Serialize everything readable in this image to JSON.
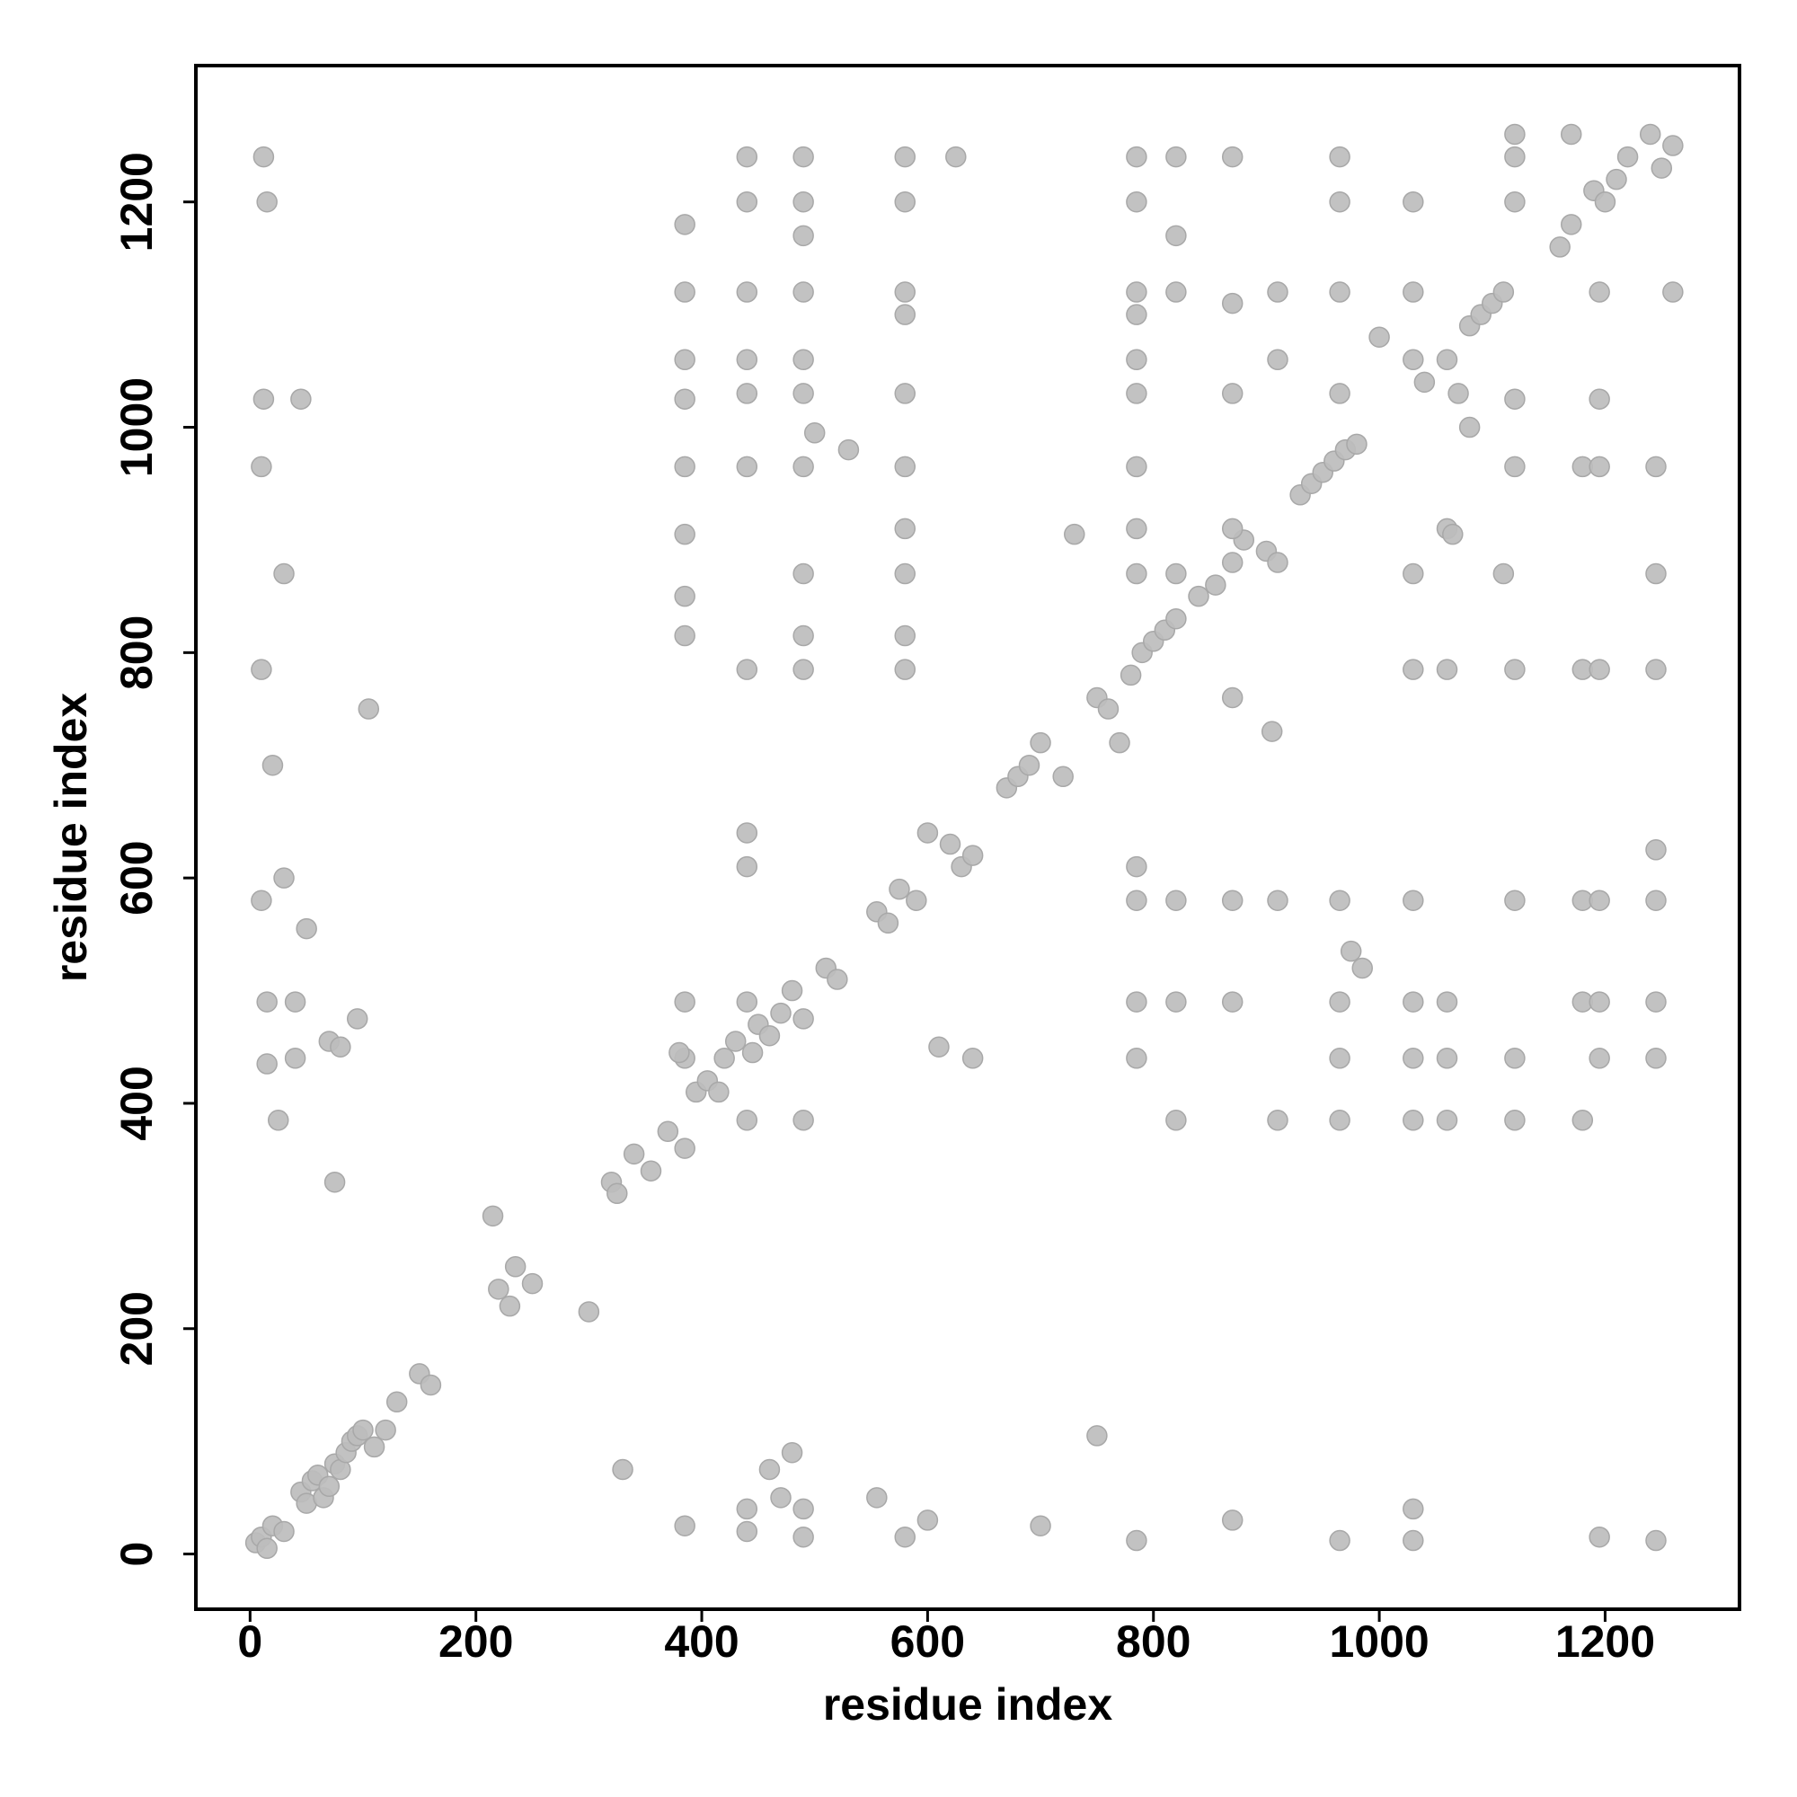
{
  "chart_data": {
    "type": "scatter",
    "x_label": "residue index",
    "y_label": "residue index",
    "color": "#bdbdbd",
    "stroke": "#a8a8a8",
    "xlim": [
      -48,
      1319
    ],
    "ylim": [
      -49,
      1321
    ],
    "xticks": [
      0,
      200,
      400,
      600,
      800,
      1000,
      1200
    ],
    "yticks": [
      0,
      200,
      400,
      600,
      800,
      1000,
      1200
    ],
    "x": [
      5,
      10,
      20,
      30,
      15,
      45,
      50,
      55,
      60,
      65,
      70,
      75,
      80,
      85,
      90,
      95,
      100,
      110,
      120,
      130,
      150,
      160,
      215,
      220,
      235,
      230,
      250,
      300,
      320,
      325,
      340,
      355,
      370,
      385,
      395,
      405,
      415,
      420,
      430,
      440,
      450,
      460,
      470,
      480,
      490,
      445,
      510,
      520,
      555,
      565,
      575,
      590,
      600,
      620,
      630,
      640,
      670,
      680,
      690,
      700,
      720,
      750,
      760,
      770,
      780,
      790,
      800,
      810,
      820,
      840,
      855,
      870,
      880,
      900,
      910,
      930,
      940,
      950,
      960,
      970,
      980,
      1000,
      1040,
      1060,
      1080,
      1090,
      1100,
      1110,
      1160,
      1170,
      1190,
      1200,
      1210,
      1220,
      1240,
      1250,
      1260,
      500,
      530,
      1080,
      1070,
      730,
      12,
      15,
      12,
      10,
      30,
      20,
      30,
      10,
      15,
      40,
      15,
      40,
      25,
      45,
      105,
      95,
      75,
      50,
      70,
      80,
      10,
      385,
      440,
      440,
      490,
      490,
      580,
      600,
      700,
      785,
      870,
      965,
      1030,
      1195,
      1245,
      460,
      480,
      330,
      555,
      750,
      1030,
      470,
      385,
      385,
      385,
      385,
      385,
      385,
      385,
      385,
      385,
      385,
      440,
      440,
      440,
      440,
      440,
      440,
      440,
      440,
      440,
      490,
      490,
      490,
      490,
      490,
      490,
      490,
      490,
      490,
      490,
      580,
      580,
      580,
      580,
      580,
      580,
      580,
      580,
      580,
      580,
      625,
      785,
      785,
      785,
      785,
      785,
      785,
      785,
      785,
      785,
      820,
      820,
      820,
      820,
      870,
      870,
      870,
      870,
      910,
      910,
      965,
      965,
      965,
      965,
      1030,
      1030,
      1030,
      1120,
      1120,
      1120,
      1170,
      785,
      785,
      785,
      785,
      820,
      820,
      820,
      870,
      870,
      910,
      910,
      965,
      965,
      965,
      965,
      1030,
      1030,
      1030,
      1030,
      1060,
      1060,
      1060,
      1120,
      1120,
      1120,
      1180,
      1180,
      1180,
      1195,
      1195,
      1195,
      1245,
      1245,
      1245,
      1245,
      1030,
      1060,
      1120,
      1180,
      1195,
      1245,
      1030,
      1110,
      1245,
      1120,
      1180,
      1195,
      1245,
      1120,
      1195,
      1195,
      1260,
      1060,
      380,
      490,
      440,
      610,
      640,
      870,
      905,
      975,
      985,
      1065
    ],
    "y": [
      10,
      15,
      25,
      20,
      5,
      55,
      45,
      65,
      70,
      50,
      60,
      80,
      75,
      90,
      100,
      105,
      110,
      95,
      110,
      135,
      160,
      150,
      300,
      235,
      255,
      220,
      240,
      215,
      330,
      320,
      355,
      340,
      375,
      360,
      410,
      420,
      410,
      440,
      455,
      490,
      470,
      460,
      480,
      500,
      475,
      445,
      520,
      510,
      570,
      560,
      590,
      580,
      640,
      630,
      610,
      620,
      680,
      690,
      700,
      720,
      690,
      760,
      750,
      720,
      780,
      800,
      810,
      820,
      830,
      850,
      860,
      880,
      900,
      890,
      880,
      940,
      950,
      960,
      970,
      980,
      985,
      1080,
      1040,
      1060,
      1090,
      1100,
      1110,
      1120,
      1160,
      1180,
      1210,
      1200,
      1220,
      1240,
      1260,
      1230,
      1250,
      995,
      980,
      1000,
      1030,
      905,
      1240,
      1200,
      1025,
      965,
      870,
      700,
      600,
      580,
      490,
      490,
      435,
      440,
      385,
      1025,
      750,
      475,
      330,
      555,
      455,
      450,
      785,
      25,
      20,
      40,
      15,
      40,
      15,
      30,
      25,
      12,
      30,
      12,
      12,
      15,
      12,
      75,
      90,
      75,
      50,
      105,
      40,
      50,
      1180,
      1120,
      1060,
      1025,
      965,
      905,
      850,
      815,
      490,
      440,
      1240,
      1200,
      1120,
      1060,
      1030,
      965,
      785,
      640,
      610,
      1240,
      1200,
      1170,
      1120,
      1060,
      1030,
      965,
      870,
      815,
      785,
      1240,
      1200,
      1120,
      1100,
      1030,
      965,
      910,
      870,
      815,
      785,
      1240,
      1240,
      1200,
      1120,
      1100,
      1060,
      1030,
      965,
      910,
      870,
      1240,
      1170,
      1120,
      870,
      1240,
      1110,
      1030,
      910,
      1120,
      1060,
      1240,
      1200,
      1120,
      1030,
      1200,
      1120,
      1060,
      1200,
      1240,
      1260,
      1260,
      610,
      580,
      490,
      440,
      580,
      490,
      385,
      580,
      490,
      580,
      385,
      580,
      490,
      440,
      385,
      580,
      490,
      440,
      385,
      490,
      440,
      385,
      580,
      440,
      385,
      580,
      490,
      385,
      580,
      490,
      440,
      625,
      580,
      490,
      440,
      785,
      785,
      785,
      785,
      785,
      785,
      870,
      870,
      870,
      965,
      965,
      965,
      965,
      1025,
      1025,
      1120,
      1120,
      910,
      445,
      385,
      385,
      450,
      440,
      760,
      730,
      535,
      520,
      905
    ]
  }
}
